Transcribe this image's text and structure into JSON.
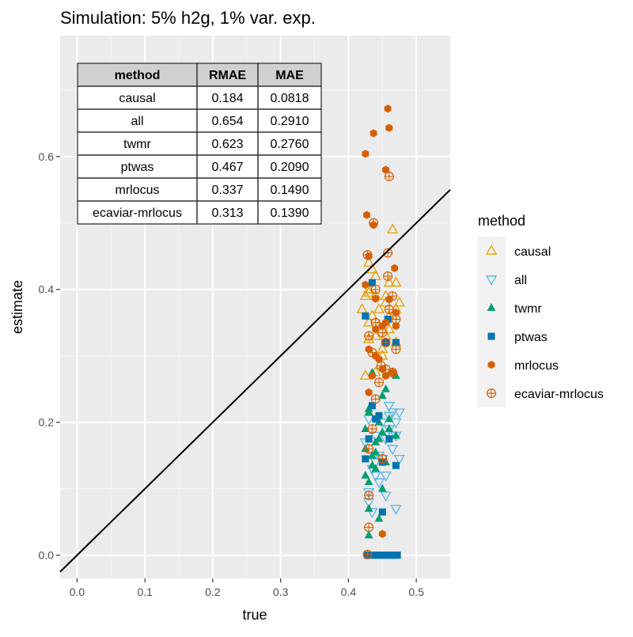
{
  "chart_data": {
    "type": "scatter",
    "title": "Simulation: 5% h2g, 1% var. exp.",
    "xlabel": "true",
    "ylabel": "estimate",
    "xlim": [
      -0.025,
      0.55
    ],
    "ylim": [
      -0.035,
      0.782
    ],
    "x_ticks": [
      0.0,
      0.1,
      0.2,
      0.3,
      0.4,
      0.5
    ],
    "x_tick_labels": [
      "0.0",
      "0.1",
      "0.2",
      "0.3",
      "0.4",
      "0.5"
    ],
    "y_ticks": [
      0.0,
      0.2,
      0.4,
      0.6
    ],
    "y_tick_labels": [
      "0.0",
      "0.2",
      "0.4",
      "0.6"
    ],
    "grid": true,
    "reference_line": {
      "slope": 1,
      "intercept": 0
    },
    "legend": {
      "title": "method",
      "position": "right",
      "entries": [
        {
          "label": "causal",
          "shape": "triangle-open",
          "color": "#E69F00"
        },
        {
          "label": "all",
          "shape": "triangle-down-open",
          "color": "#56B4E9"
        },
        {
          "label": "twmr",
          "shape": "triangle-filled",
          "color": "#009E73"
        },
        {
          "label": "ptwas",
          "shape": "square-filled",
          "color": "#0072B2"
        },
        {
          "label": "mrlocus",
          "shape": "hexagon-filled",
          "color": "#D55E00"
        },
        {
          "label": "ecaviar-mrlocus",
          "shape": "circle-plus",
          "color": "#D55E00"
        }
      ]
    },
    "table": {
      "columns": [
        "method",
        "RMAE",
        "MAE"
      ],
      "rows": [
        [
          "causal",
          "0.184",
          "0.0818"
        ],
        [
          "all",
          "0.654",
          "0.2910"
        ],
        [
          "twmr",
          "0.623",
          "0.2760"
        ],
        [
          "ptwas",
          "0.467",
          "0.2090"
        ],
        [
          "mrlocus",
          "0.337",
          "0.1490"
        ],
        [
          "ecaviar-mrlocus",
          "0.313",
          "0.1390"
        ]
      ]
    },
    "series": [
      {
        "name": "causal",
        "points": [
          [
            0.455,
            0.38
          ],
          [
            0.46,
            0.41
          ],
          [
            0.44,
            0.42
          ],
          [
            0.47,
            0.41
          ],
          [
            0.43,
            0.35
          ],
          [
            0.465,
            0.49
          ],
          [
            0.425,
            0.27
          ],
          [
            0.45,
            0.3
          ],
          [
            0.43,
            0.395
          ],
          [
            0.44,
            0.33
          ],
          [
            0.435,
            0.36
          ],
          [
            0.46,
            0.34
          ],
          [
            0.47,
            0.32
          ],
          [
            0.445,
            0.37
          ],
          [
            0.43,
            0.44
          ],
          [
            0.455,
            0.39
          ],
          [
            0.42,
            0.37
          ],
          [
            0.465,
            0.36
          ],
          [
            0.44,
            0.275
          ],
          [
            0.45,
            0.31
          ],
          [
            0.43,
            0.4
          ],
          [
            0.46,
            0.36
          ],
          [
            0.475,
            0.38
          ],
          [
            0.435,
            0.43
          ],
          [
            0.445,
            0.345
          ],
          [
            0.425,
            0.39
          ],
          [
            0.455,
            0.33
          ],
          [
            0.47,
            0.37
          ],
          [
            0.44,
            0.39
          ],
          [
            0.43,
            0.325
          ]
        ]
      },
      {
        "name": "all",
        "points": [
          [
            0.465,
            0.215
          ],
          [
            0.475,
            0.215
          ],
          [
            0.47,
            0.2
          ],
          [
            0.46,
            0.225
          ],
          [
            0.455,
            0.09
          ],
          [
            0.47,
            0.07
          ],
          [
            0.43,
            0.08
          ],
          [
            0.44,
            0.12
          ],
          [
            0.45,
            0.145
          ],
          [
            0.475,
            0.145
          ],
          [
            0.435,
            0.065
          ],
          [
            0.43,
            0.205
          ],
          [
            0.44,
            0.18
          ],
          [
            0.455,
            0.12
          ],
          [
            0.445,
            0.11
          ],
          [
            0.46,
            0.19
          ],
          [
            0.425,
            0.17
          ],
          [
            0.45,
            0.2
          ],
          [
            0.435,
            0.13
          ],
          [
            0.465,
            0.16
          ],
          [
            0.44,
            0.14
          ],
          [
            0.43,
            0.095
          ],
          [
            0.455,
            0.175
          ],
          [
            0.47,
            0.18
          ],
          [
            0.445,
            0.15
          ],
          [
            0.46,
            0.21
          ]
        ]
      },
      {
        "name": "twmr",
        "points": [
          [
            0.435,
            0.275
          ],
          [
            0.455,
            0.25
          ],
          [
            0.43,
            0.215
          ],
          [
            0.445,
            0.2
          ],
          [
            0.47,
            0.18
          ],
          [
            0.425,
            0.19
          ],
          [
            0.44,
            0.155
          ],
          [
            0.435,
            0.135
          ],
          [
            0.45,
            0.1
          ],
          [
            0.43,
            0.07
          ],
          [
            0.445,
            0.055
          ],
          [
            0.43,
            0.03
          ],
          [
            0.455,
            0.14
          ],
          [
            0.44,
            0.17
          ],
          [
            0.46,
            0.19
          ],
          [
            0.425,
            0.12
          ],
          [
            0.45,
            0.24
          ],
          [
            0.47,
            0.27
          ],
          [
            0.435,
            0.15
          ],
          [
            0.43,
            0.22
          ],
          [
            0.445,
            0.175
          ],
          [
            0.46,
            0.205
          ],
          [
            0.425,
            0.16
          ],
          [
            0.44,
            0.13
          ],
          [
            0.45,
            0.185
          ],
          [
            0.43,
            0.11
          ]
        ]
      },
      {
        "name": "ptwas",
        "points": [
          [
            0.428,
            0.0
          ],
          [
            0.433,
            0.0
          ],
          [
            0.438,
            0.0
          ],
          [
            0.443,
            0.0
          ],
          [
            0.448,
            0.0
          ],
          [
            0.453,
            0.0
          ],
          [
            0.458,
            0.0
          ],
          [
            0.463,
            0.0
          ],
          [
            0.468,
            0.0
          ],
          [
            0.472,
            0.0
          ],
          [
            0.458,
            0.355
          ],
          [
            0.435,
            0.41
          ],
          [
            0.47,
            0.32
          ],
          [
            0.425,
            0.36
          ],
          [
            0.455,
            0.32
          ],
          [
            0.44,
            0.205
          ],
          [
            0.45,
            0.14
          ],
          [
            0.47,
            0.135
          ],
          [
            0.45,
            0.065
          ],
          [
            0.425,
            0.145
          ],
          [
            0.46,
            0.175
          ],
          [
            0.435,
            0.225
          ],
          [
            0.43,
            0.175
          ],
          [
            0.445,
            0.21
          ]
        ]
      },
      {
        "name": "mrlocus",
        "points": [
          [
            0.458,
            0.672
          ],
          [
            0.46,
            0.643
          ],
          [
            0.437,
            0.635
          ],
          [
            0.425,
            0.604
          ],
          [
            0.437,
            0.497
          ],
          [
            0.427,
            0.512
          ],
          [
            0.455,
            0.58
          ],
          [
            0.468,
            0.432
          ],
          [
            0.43,
            0.45
          ],
          [
            0.425,
            0.407
          ],
          [
            0.44,
            0.386
          ],
          [
            0.46,
            0.385
          ],
          [
            0.47,
            0.365
          ],
          [
            0.445,
            0.295
          ],
          [
            0.455,
            0.27
          ],
          [
            0.435,
            0.27
          ],
          [
            0.43,
            0.245
          ],
          [
            0.44,
            0.34
          ],
          [
            0.45,
            0.345
          ],
          [
            0.465,
            0.275
          ],
          [
            0.45,
            0.032
          ],
          [
            0.455,
            0.35
          ],
          [
            0.44,
            0.3
          ],
          [
            0.47,
            0.345
          ],
          [
            0.43,
            0.31
          ],
          [
            0.45,
            0.28
          ]
        ]
      },
      {
        "name": "ecaviar-mrlocus",
        "points": [
          [
            0.46,
            0.57
          ],
          [
            0.458,
            0.455
          ],
          [
            0.428,
            0.452
          ],
          [
            0.437,
            0.5
          ],
          [
            0.458,
            0.42
          ],
          [
            0.465,
            0.39
          ],
          [
            0.47,
            0.355
          ],
          [
            0.43,
            0.33
          ],
          [
            0.44,
            0.35
          ],
          [
            0.45,
            0.335
          ],
          [
            0.435,
            0.305
          ],
          [
            0.455,
            0.28
          ],
          [
            0.465,
            0.275
          ],
          [
            0.448,
            0.285
          ],
          [
            0.43,
            0.16
          ],
          [
            0.44,
            0.235
          ],
          [
            0.45,
            0.145
          ],
          [
            0.43,
            0.09
          ],
          [
            0.43,
            0.042
          ],
          [
            0.428,
            0.001
          ],
          [
            0.47,
            0.31
          ],
          [
            0.44,
            0.4
          ],
          [
            0.455,
            0.32
          ],
          [
            0.445,
            0.26
          ],
          [
            0.435,
            0.19
          ],
          [
            0.46,
            0.37
          ]
        ]
      }
    ]
  }
}
